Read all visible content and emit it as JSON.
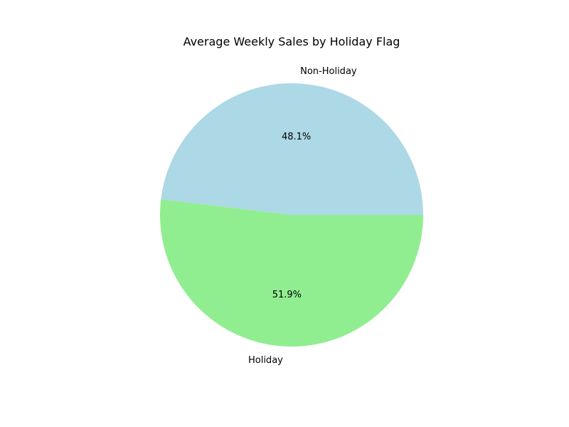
{
  "chart_data": {
    "type": "pie",
    "title": "Average Weekly Sales by Holiday Flag",
    "labels": [
      "Non-Holiday",
      "Holiday"
    ],
    "values": [
      48.1,
      51.9
    ],
    "autopct": [
      "48.1%",
      "51.9%"
    ],
    "colors": [
      "#add8e6",
      "#90ee90"
    ],
    "start_angle_deg": 0,
    "legend": "none"
  }
}
